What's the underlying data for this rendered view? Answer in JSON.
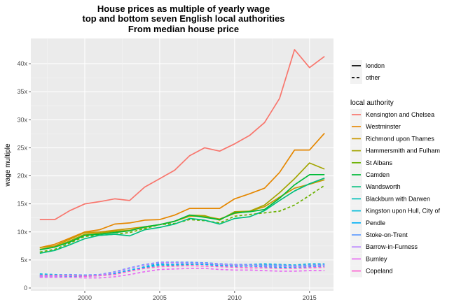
{
  "chart_data": {
    "type": "line",
    "title_lines": [
      "House prices as multiple of yearly wage",
      "top and bottom seven English local authorities",
      "From median house price"
    ],
    "xlabel": "",
    "ylabel": "wage multiple",
    "xlim": [
      1996.4,
      2016.6
    ],
    "ylim": [
      -0.5,
      44.5
    ],
    "x_ticks": [
      2000,
      2005,
      2010,
      2015
    ],
    "x_tick_labels": [
      "2000",
      "2005",
      "2010",
      "2015"
    ],
    "y_ticks": [
      0,
      5,
      10,
      15,
      20,
      25,
      30,
      35,
      40
    ],
    "y_tick_labels": [
      "0",
      "5x",
      "10x",
      "15x",
      "20x",
      "25x",
      "30x",
      "35x",
      "40x"
    ],
    "grid": true,
    "legend_position": "right",
    "linetype_legend": {
      "title": "",
      "entries": [
        {
          "label": "london",
          "dash": "solid"
        },
        {
          "label": "other",
          "dash": "dashed"
        }
      ]
    },
    "color_legend_title": "local authority",
    "x": [
      1997,
      1998,
      1999,
      2000,
      2001,
      2002,
      2003,
      2004,
      2005,
      2006,
      2007,
      2008,
      2009,
      2010,
      2011,
      2012,
      2013,
      2014,
      2015,
      2016
    ],
    "series": [
      {
        "name": "Kensington and Chelsea",
        "color": "#F8766D",
        "dash": "solid",
        "values": [
          12.2,
          12.2,
          13.8,
          15.0,
          15.4,
          15.9,
          15.6,
          18.0,
          19.5,
          21.0,
          23.6,
          25.0,
          24.4,
          25.7,
          27.2,
          29.5,
          33.8,
          42.5,
          39.3,
          41.3
        ]
      },
      {
        "name": "Westminster",
        "color": "#E58700",
        "dash": "solid",
        "values": [
          7.2,
          7.8,
          8.9,
          10.0,
          10.4,
          11.4,
          11.6,
          12.1,
          12.2,
          13.0,
          14.2,
          14.2,
          14.2,
          15.9,
          16.8,
          17.8,
          20.6,
          24.6,
          24.6,
          27.6
        ]
      },
      {
        "name": "Richmond upon Thames",
        "color": "#C99800",
        "dash": "solid",
        "values": [
          7.2,
          7.5,
          8.7,
          9.9,
          10.0,
          10.3,
          10.6,
          10.9,
          11.3,
          11.9,
          12.8,
          12.8,
          12.3,
          13.3,
          13.7,
          14.5,
          16.2,
          17.8,
          18.5,
          19.3
        ]
      },
      {
        "name": "Hammersmith and Fulham",
        "color": "#A3A500",
        "dash": "solid",
        "values": [
          6.9,
          7.3,
          8.4,
          9.6,
          9.8,
          10.1,
          10.3,
          10.8,
          11.3,
          11.9,
          13.0,
          12.9,
          12.1,
          13.6,
          13.7,
          14.8,
          17.0,
          19.5,
          22.3,
          21.2
        ]
      },
      {
        "name": "St Albans",
        "color": "#6BB100",
        "dash": "dashed",
        "values": [
          6.4,
          6.9,
          8.0,
          9.2,
          9.4,
          9.6,
          9.9,
          10.6,
          11.3,
          11.5,
          12.2,
          12.0,
          11.6,
          12.8,
          13.1,
          13.4,
          13.7,
          14.8,
          16.5,
          18.3
        ]
      },
      {
        "name": "Camden",
        "color": "#00BA38",
        "dash": "solid",
        "values": [
          6.8,
          7.3,
          8.2,
          9.4,
          9.6,
          9.9,
          10.2,
          10.9,
          11.3,
          11.9,
          13.0,
          12.6,
          12.2,
          13.4,
          13.6,
          14.0,
          16.0,
          18.4,
          20.2,
          20.2
        ]
      },
      {
        "name": "Wandsworth",
        "color": "#00BF7D",
        "dash": "solid",
        "values": [
          6.2,
          6.7,
          7.7,
          8.8,
          9.4,
          9.6,
          9.3,
          10.4,
          10.8,
          11.4,
          12.4,
          12.1,
          11.4,
          12.4,
          12.7,
          13.8,
          15.6,
          17.3,
          18.6,
          19.6
        ]
      },
      {
        "name": "Blackburn with Darwen",
        "color": "#00C0B8",
        "dash": "dashed",
        "values": [
          2.2,
          2.2,
          2.3,
          2.2,
          2.3,
          2.5,
          3.1,
          3.6,
          4.1,
          4.1,
          4.2,
          4.3,
          4.1,
          4.1,
          4.0,
          4.1,
          4.1,
          3.9,
          4.0,
          4.1
        ]
      },
      {
        "name": "Kingston upon Hull, City of",
        "color": "#00BCD8",
        "dash": "dashed",
        "values": [
          2.5,
          2.4,
          2.3,
          2.3,
          2.3,
          2.5,
          3.0,
          3.8,
          4.4,
          4.6,
          4.5,
          4.5,
          4.3,
          4.2,
          4.2,
          4.3,
          4.2,
          4.1,
          4.3,
          4.3
        ]
      },
      {
        "name": "Pendle",
        "color": "#00B0F6",
        "dash": "dashed",
        "values": [
          2.0,
          2.0,
          2.1,
          2.1,
          2.2,
          2.6,
          3.2,
          3.7,
          4.2,
          4.2,
          4.3,
          4.2,
          4.0,
          3.9,
          3.9,
          3.8,
          3.7,
          3.7,
          3.8,
          3.9
        ]
      },
      {
        "name": "Stoke-on-Trent",
        "color": "#619CFF",
        "dash": "dashed",
        "values": [
          2.3,
          2.3,
          2.4,
          2.3,
          2.4,
          2.9,
          3.6,
          4.2,
          4.6,
          4.6,
          4.6,
          4.5,
          4.3,
          4.2,
          4.2,
          4.1,
          4.1,
          4.0,
          4.1,
          4.2
        ]
      },
      {
        "name": "Barrow-in-Furness",
        "color": "#B983FF",
        "dash": "dashed",
        "values": [
          2.1,
          2.1,
          2.2,
          2.1,
          2.3,
          2.8,
          3.5,
          4.1,
          4.5,
          4.5,
          4.4,
          4.4,
          4.2,
          4.1,
          4.0,
          3.9,
          3.9,
          3.8,
          3.9,
          4.0
        ]
      },
      {
        "name": "Burnley",
        "color": "#E76BF3",
        "dash": "dashed",
        "values": [
          1.9,
          1.9,
          1.9,
          1.8,
          1.8,
          2.0,
          2.4,
          2.9,
          3.3,
          3.4,
          3.5,
          3.5,
          3.3,
          3.2,
          3.2,
          3.1,
          3.0,
          3.0,
          3.1,
          3.1
        ]
      },
      {
        "name": "Copeland",
        "color": "#FD61D1",
        "dash": "dashed",
        "values": [
          2.2,
          2.2,
          2.2,
          2.1,
          2.2,
          2.4,
          3.0,
          3.5,
          3.8,
          3.9,
          4.0,
          3.9,
          3.8,
          3.7,
          3.6,
          3.6,
          3.5,
          3.5,
          3.6,
          3.7
        ]
      }
    ]
  }
}
